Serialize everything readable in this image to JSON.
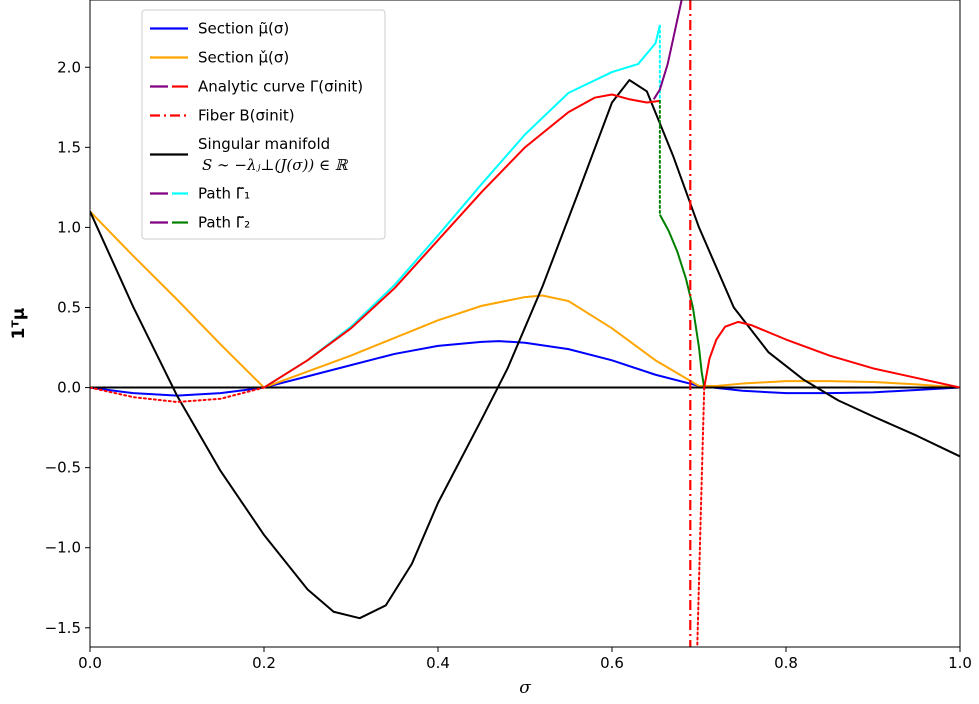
{
  "chart_data": {
    "type": "line",
    "xlabel": "σ",
    "ylabel": "1ᵀμ",
    "xlim": [
      0.0,
      1.0
    ],
    "ylim": [
      -1.62,
      2.42
    ],
    "x_ticks": [
      "0.0",
      "0.2",
      "0.4",
      "0.6",
      "0.8",
      "1.0"
    ],
    "y_ticks": [
      "−1.5",
      "−1.0",
      "−0.5",
      "0.0",
      "0.5",
      "1.0",
      "1.5",
      "2.0"
    ],
    "x_tick_values": [
      0.0,
      0.2,
      0.4,
      0.6,
      0.8,
      1.0
    ],
    "y_tick_values": [
      -1.5,
      -1.0,
      -0.5,
      0.0,
      0.5,
      1.0,
      1.5,
      2.0
    ],
    "grid": false,
    "legend_placement": "top-left",
    "legend": [
      {
        "label": "Section μ̃(σ)",
        "colors": [
          "#0000ff"
        ],
        "style": "solid"
      },
      {
        "label": "Section μ̌(σ)",
        "colors": [
          "#ffa500"
        ],
        "style": "solid"
      },
      {
        "label": "Analytic curve Γ(σinit)",
        "colors": [
          "#800080",
          "#ff0000"
        ],
        "style": "dashed"
      },
      {
        "label": "Fiber B(σinit)",
        "colors": [
          "#ff0000"
        ],
        "style": "dashdot"
      },
      {
        "label": "Singular manifold",
        "label2": "S ∼ −λⱼ⊥(J(σ)) ∈ ℝ",
        "colors": [
          "#000000"
        ],
        "style": "solid"
      },
      {
        "label": "Path Γ̃₁",
        "colors": [
          "#800080",
          "#00ffff"
        ],
        "style": "dashed"
      },
      {
        "label": "Path Γ̃₂",
        "colors": [
          "#800080",
          "#008000"
        ],
        "style": "dashed"
      }
    ],
    "series": [
      {
        "key": "mu_tilde",
        "color": "#0000ff",
        "style": "solid",
        "x": [
          0.0,
          0.05,
          0.1,
          0.15,
          0.2,
          0.25,
          0.3,
          0.35,
          0.4,
          0.45,
          0.47,
          0.5,
          0.55,
          0.6,
          0.65,
          0.7,
          0.75,
          0.8,
          0.85,
          0.9,
          0.95,
          1.0
        ],
        "y": [
          0.0,
          -0.035,
          -0.05,
          -0.035,
          0.0,
          0.07,
          0.14,
          0.21,
          0.26,
          0.285,
          0.29,
          0.28,
          0.24,
          0.17,
          0.08,
          0.01,
          -0.02,
          -0.035,
          -0.035,
          -0.03,
          -0.015,
          0.0
        ]
      },
      {
        "key": "mu_check",
        "color": "#ffa500",
        "style": "solid",
        "x": [
          0.0,
          0.05,
          0.1,
          0.15,
          0.2,
          0.25,
          0.3,
          0.35,
          0.4,
          0.45,
          0.5,
          0.52,
          0.55,
          0.6,
          0.65,
          0.7,
          0.72,
          0.75,
          0.8,
          0.85,
          0.9,
          0.95,
          1.0
        ],
        "y": [
          1.1,
          0.82,
          0.55,
          0.27,
          0.0,
          0.1,
          0.2,
          0.31,
          0.42,
          0.51,
          0.565,
          0.575,
          0.54,
          0.37,
          0.17,
          0.01,
          0.01,
          0.025,
          0.04,
          0.04,
          0.035,
          0.02,
          0.0
        ]
      },
      {
        "key": "singular_manifold",
        "color": "#000000",
        "style": "solid",
        "x": [
          0.0,
          0.05,
          0.1,
          0.15,
          0.2,
          0.25,
          0.28,
          0.31,
          0.34,
          0.37,
          0.4,
          0.45,
          0.48,
          0.52,
          0.56,
          0.6,
          0.62,
          0.64,
          0.67,
          0.7,
          0.74,
          0.78,
          0.82,
          0.86,
          0.9,
          0.95,
          1.0
        ],
        "y": [
          1.1,
          0.5,
          -0.05,
          -0.52,
          -0.92,
          -1.26,
          -1.4,
          -1.44,
          -1.36,
          -1.1,
          -0.72,
          -0.2,
          0.12,
          0.63,
          1.2,
          1.78,
          1.92,
          1.85,
          1.45,
          1.0,
          0.5,
          0.22,
          0.05,
          -0.08,
          -0.18,
          -0.3,
          -0.43
        ]
      },
      {
        "key": "zero_line",
        "color": "#000000",
        "style": "solid",
        "x": [
          0.0,
          1.0
        ],
        "y": [
          0.0,
          0.0
        ]
      },
      {
        "key": "analytic_dotted_left",
        "color": "#ff0000",
        "style": "dotted",
        "x": [
          0.0,
          0.05,
          0.1,
          0.15,
          0.2
        ],
        "y": [
          0.0,
          -0.06,
          -0.09,
          -0.07,
          0.0
        ]
      },
      {
        "key": "path1",
        "color": "#00ffff",
        "style": "solid",
        "x": [
          0.2,
          0.25,
          0.3,
          0.35,
          0.4,
          0.45,
          0.5,
          0.55,
          0.6,
          0.63,
          0.65,
          0.655
        ],
        "y": [
          0.0,
          0.17,
          0.38,
          0.64,
          0.95,
          1.27,
          1.58,
          1.84,
          1.97,
          2.02,
          2.15,
          2.26
        ]
      },
      {
        "key": "path1_dotted",
        "color": "#00ffff",
        "style": "dotted",
        "x": [
          0.655,
          0.655
        ],
        "y": [
          2.26,
          1.79
        ]
      },
      {
        "key": "analytic_curve",
        "color": "#ff0000",
        "style": "solid",
        "x": [
          0.2,
          0.25,
          0.3,
          0.35,
          0.4,
          0.45,
          0.5,
          0.55,
          0.58,
          0.6,
          0.62,
          0.64,
          0.655
        ],
        "y": [
          0.0,
          0.17,
          0.37,
          0.62,
          0.92,
          1.22,
          1.5,
          1.72,
          1.81,
          1.83,
          1.8,
          1.78,
          1.79
        ]
      },
      {
        "key": "analytic_purple_up",
        "color": "#800080",
        "style": "solid",
        "x": [
          0.648,
          0.655,
          0.664,
          0.672,
          0.68
        ],
        "y": [
          1.8,
          1.86,
          2.02,
          2.22,
          2.42
        ]
      },
      {
        "key": "path2_dotted",
        "color": "#008000",
        "style": "dotted",
        "x": [
          0.655,
          0.655
        ],
        "y": [
          1.79,
          1.08
        ]
      },
      {
        "key": "path2",
        "color": "#008000",
        "style": "solid",
        "x": [
          0.655,
          0.665,
          0.675,
          0.685,
          0.693,
          0.7,
          0.703,
          0.706
        ],
        "y": [
          1.08,
          0.98,
          0.85,
          0.68,
          0.5,
          0.25,
          0.1,
          0.0
        ]
      },
      {
        "key": "analytic_right",
        "color": "#ff0000",
        "style": "solid",
        "x": [
          0.706,
          0.712,
          0.72,
          0.73,
          0.745,
          0.76,
          0.8,
          0.85,
          0.9,
          0.95,
          1.0
        ],
        "y": [
          0.0,
          0.18,
          0.3,
          0.38,
          0.41,
          0.39,
          0.3,
          0.2,
          0.12,
          0.06,
          0.0
        ]
      },
      {
        "key": "analytic_dotted_right",
        "color": "#ff0000",
        "style": "dotted",
        "x": [
          0.706,
          0.702,
          0.698
        ],
        "y": [
          0.0,
          -0.8,
          -1.62
        ]
      },
      {
        "key": "fiber",
        "color": "#ff0000",
        "style": "dashdot",
        "x": [
          0.69,
          0.69
        ],
        "y": [
          2.42,
          -1.62
        ]
      }
    ]
  }
}
